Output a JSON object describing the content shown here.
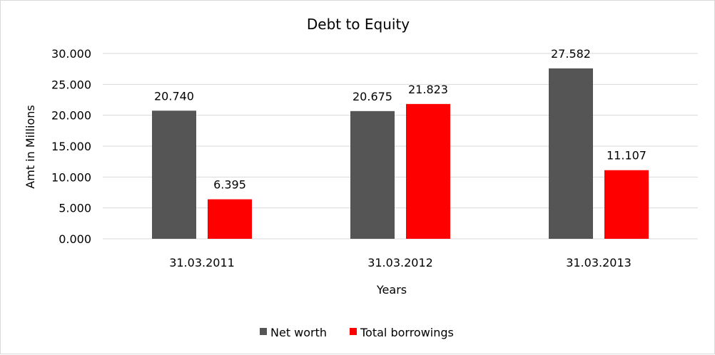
{
  "chart_data": {
    "type": "bar",
    "title": "Debt to Equity",
    "xlabel": "Years",
    "ylabel": "Amt in Millions",
    "categories": [
      "31.03.2011",
      "31.03.2012",
      "31.03.2013"
    ],
    "series": [
      {
        "name": "Net worth",
        "values": [
          20.74,
          20.675,
          27.582
        ],
        "color": "#555555"
      },
      {
        "name": "Total borrowings",
        "values": [
          6.395,
          21.823,
          11.107
        ],
        "color": "#ff0000"
      }
    ],
    "data_labels": [
      [
        "20.740",
        "20.675",
        "27.582"
      ],
      [
        "6.395",
        "21.823",
        "11.107"
      ]
    ],
    "ylim": [
      0,
      30
    ],
    "yticks": [
      0,
      5,
      10,
      15,
      20,
      25,
      30
    ],
    "ytick_labels": [
      "0.000",
      "5.000",
      "10.000",
      "15.000",
      "20.000",
      "25.000",
      "30.000"
    ],
    "grid": true,
    "gridline_color": "#d9d9d9",
    "legend_position": "bottom"
  }
}
